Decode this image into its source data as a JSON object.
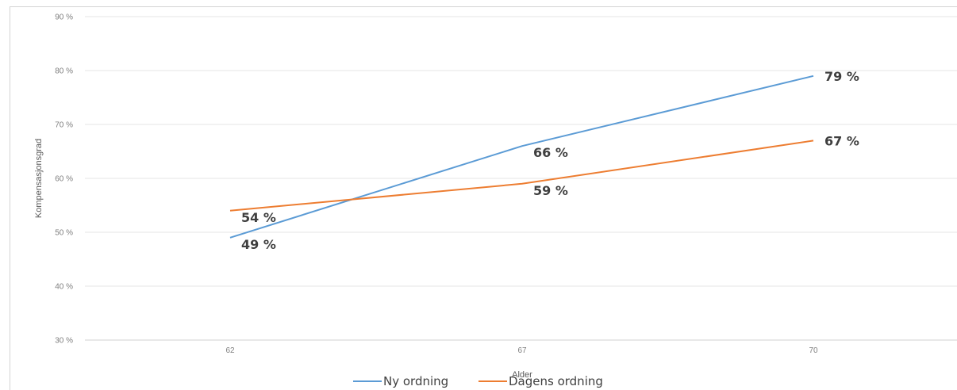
{
  "chart_data": {
    "type": "line",
    "categories": [
      "62",
      "67",
      "70"
    ],
    "series": [
      {
        "name": "Ny ordning",
        "values": [
          49,
          66,
          79
        ],
        "labels": [
          "49 %",
          "66 %",
          "79 %"
        ],
        "color": "#5b9bd5"
      },
      {
        "name": "Dagens ordning",
        "values": [
          54,
          59,
          67
        ],
        "labels": [
          "54 %",
          "59 %",
          "67 %"
        ],
        "color": "#ed7d31"
      }
    ],
    "xlabel": "Alder",
    "ylabel": "Kompensasjonsgrad",
    "ylim": [
      30,
      90
    ],
    "yticks": [
      30,
      40,
      50,
      60,
      70,
      80,
      90
    ],
    "ytick_labels": [
      "30 %",
      "40 %",
      "50 %",
      "60 %",
      "70 %",
      "80 %",
      "90 %"
    ],
    "grid": true,
    "legend": "bottom"
  }
}
